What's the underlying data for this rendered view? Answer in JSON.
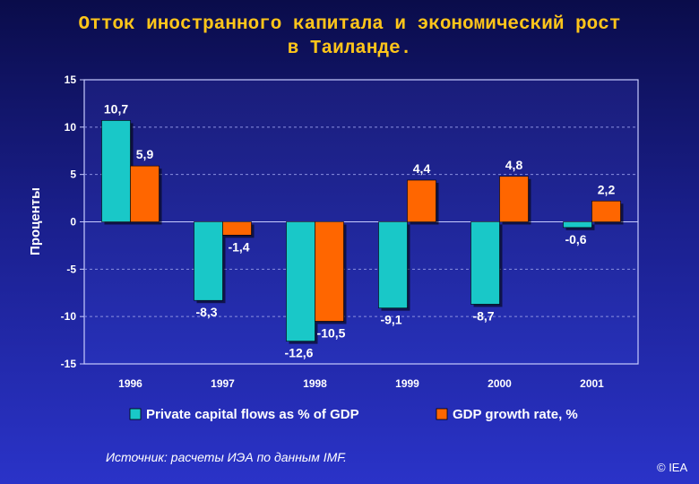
{
  "header": {
    "title_line1": "Отток иностранного капитала и экономический рост",
    "title_line2": "в Таиланде."
  },
  "footer": {
    "source": "Источник: расчеты ИЭА по данным IMF.",
    "copyright": "© IEA"
  },
  "colors": {
    "series1": "#19c8c8",
    "series2": "#ff6600",
    "title": "#ffc51a"
  },
  "chart_data": {
    "type": "bar",
    "title": "Отток иностранного капитала и экономический рост в Таиланде.",
    "xlabel": "",
    "ylabel": "Проценты",
    "ylim": [
      -15,
      15
    ],
    "yticks": [
      15,
      10,
      5,
      0,
      -5,
      -10,
      -15
    ],
    "ytick_labels": [
      "15",
      "10",
      "5",
      "0",
      "-5",
      "-10",
      "-15"
    ],
    "grid": true,
    "legend_position": "bottom",
    "categories": [
      "1996",
      "1997",
      "1998",
      "1999",
      "2000",
      "2001"
    ],
    "series": [
      {
        "name": "Private capital flows as % of GDP",
        "values": [
          10.7,
          -8.3,
          -12.6,
          -9.1,
          -8.7,
          -0.6
        ],
        "labels": [
          "10,7",
          "-8,3",
          "-12,6",
          "-9,1",
          "-8,7",
          "-0,6"
        ]
      },
      {
        "name": "GDP growth rate, %",
        "values": [
          5.9,
          -1.4,
          -10.5,
          4.4,
          4.8,
          2.2
        ],
        "labels": [
          "5,9",
          "-1,4",
          "-10,5",
          "4,4",
          "4,8",
          "2,2"
        ]
      }
    ]
  }
}
